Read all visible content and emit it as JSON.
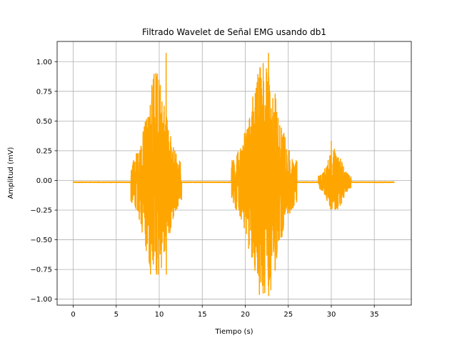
{
  "chart_data": {
    "type": "line",
    "title": "Filtrado Wavelet de Señal EMG usando db1",
    "xlabel": "Tiempo (s)",
    "ylabel": "Amplitud (mV)",
    "xlim": [
      -1.87,
      39.3
    ],
    "ylim": [
      -1.05,
      1.17
    ],
    "xticks": [
      0,
      5,
      10,
      15,
      20,
      25,
      30,
      35
    ],
    "xtick_labels": [
      "0",
      "5",
      "10",
      "15",
      "20",
      "25",
      "30",
      "35"
    ],
    "yticks": [
      -1.0,
      -0.75,
      -0.5,
      -0.25,
      0.0,
      0.25,
      0.5,
      0.75,
      1.0
    ],
    "ytick_labels": [
      "−1.00",
      "−0.75",
      "−0.50",
      "−0.25",
      "0.00",
      "0.25",
      "0.50",
      "0.75",
      "1.00"
    ],
    "grid": true,
    "line_color": "#ffa500",
    "series": [
      {
        "name": "",
        "duration_s": 37.3,
        "baseline_mV": -0.015,
        "bursts": [
          {
            "start": 6.7,
            "end": 12.6,
            "min": -0.79,
            "max": 1.07,
            "peak_time": 10.8
          },
          {
            "start": 18.4,
            "end": 26.0,
            "min": -0.97,
            "max": 1.07,
            "peak_time": 22.7
          },
          {
            "start": 28.5,
            "end": 32.3,
            "min": -0.24,
            "max": 0.33,
            "peak_time": 30.0
          }
        ]
      }
    ]
  }
}
